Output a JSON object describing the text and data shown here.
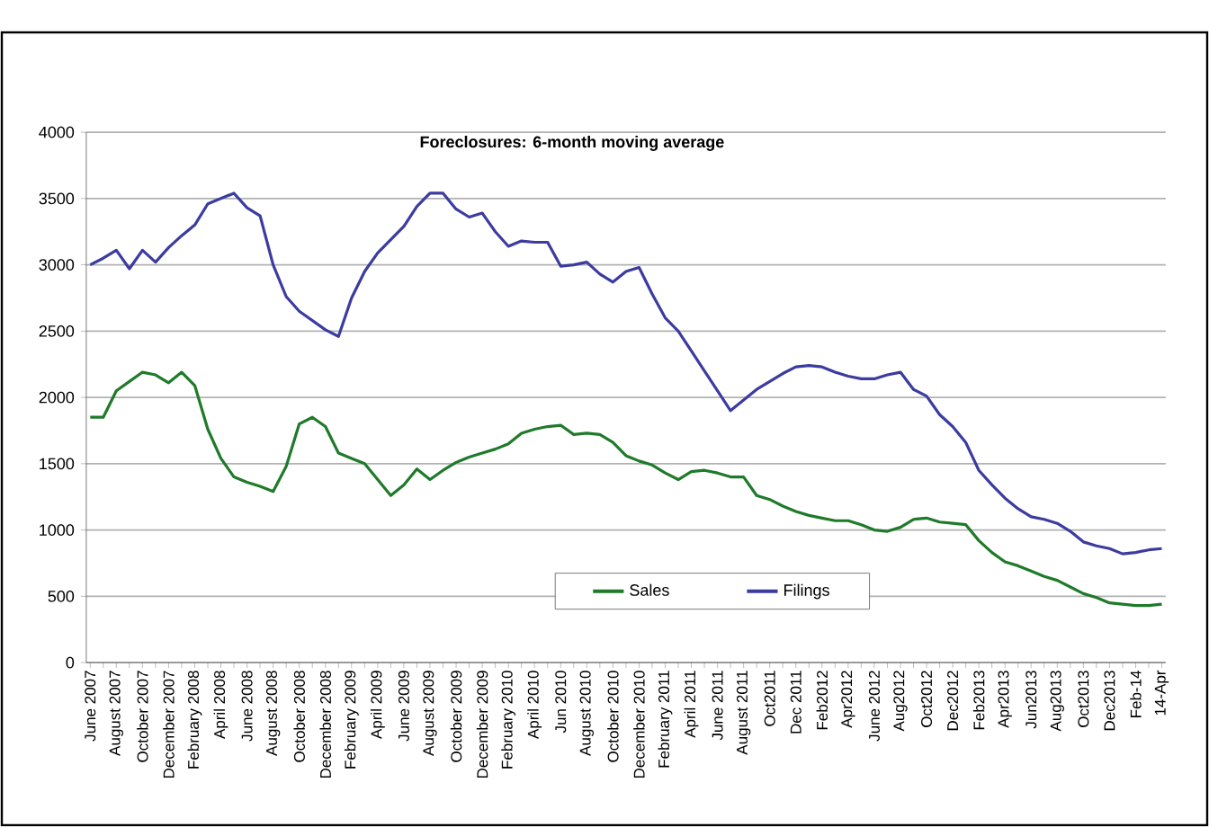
{
  "chart_data": {
    "type": "line",
    "title": "Foreclosures: 6-month moving average",
    "categories": [
      "June 2007",
      null,
      "August 2007",
      null,
      "October 2007",
      null,
      "December 2007",
      null,
      "February 2008",
      null,
      "April 2008",
      null,
      "June 2008",
      null,
      "August 2008",
      null,
      "October 2008",
      null,
      "December 2008",
      null,
      "February 2009",
      null,
      "April 2009",
      null,
      "June 2009",
      null,
      "August 2009",
      null,
      "October 2009",
      null,
      "December 2009",
      null,
      "February 2010",
      null,
      "April 2010",
      null,
      "Jun 2010",
      null,
      "August 2010",
      null,
      "October 2010",
      null,
      "December 2010",
      null,
      "February 2011",
      null,
      "April 2011",
      null,
      "June 2011",
      null,
      "August 2011",
      null,
      "Oct2011",
      null,
      "Dec 2011",
      null,
      "Feb2012",
      null,
      "Apr2012",
      null,
      "June 2012",
      null,
      "Aug2012",
      null,
      "Oct2012",
      null,
      "Dec2012",
      null,
      "Feb2013",
      null,
      "Apr2013",
      null,
      "Jun2013",
      null,
      "Aug2013",
      null,
      "Oct2013",
      null,
      "Dec2013",
      null,
      "Feb-14",
      null,
      "14-Apr"
    ],
    "series": [
      {
        "name": "Sales",
        "color": "#1f7a2a",
        "values": [
          1850,
          1850,
          2050,
          2120,
          2190,
          2170,
          2110,
          2190,
          2090,
          1760,
          1540,
          1400,
          1360,
          1330,
          1290,
          1480,
          1800,
          1850,
          1780,
          1580,
          1540,
          1500,
          1380,
          1260,
          1340,
          1460,
          1380,
          1450,
          1510,
          1550,
          1580,
          1610,
          1650,
          1730,
          1760,
          1780,
          1790,
          1720,
          1730,
          1720,
          1660,
          1560,
          1520,
          1490,
          1430,
          1380,
          1440,
          1450,
          1430,
          1400,
          1400,
          1260,
          1230,
          1180,
          1140,
          1110,
          1090,
          1070,
          1070,
          1040,
          1000,
          990,
          1020,
          1080,
          1090,
          1060,
          1050,
          1040,
          920,
          830,
          760,
          730,
          690,
          650,
          620,
          570,
          520,
          490,
          450,
          440,
          430,
          430,
          440
        ]
      },
      {
        "name": "Filings",
        "color": "#3c3ca0",
        "values": [
          3000,
          3050,
          3110,
          2970,
          3110,
          3020,
          3130,
          3220,
          3300,
          3460,
          3500,
          3540,
          3430,
          3370,
          3000,
          2760,
          2650,
          2580,
          2510,
          2460,
          2750,
          2950,
          3090,
          3190,
          3290,
          3440,
          3540,
          3540,
          3420,
          3360,
          3390,
          3250,
          3140,
          3180,
          3170,
          3170,
          2990,
          3000,
          3020,
          2930,
          2870,
          2950,
          2980,
          2780,
          2600,
          2500,
          2350,
          2200,
          2050,
          1900,
          1980,
          2060,
          2120,
          2180,
          2230,
          2240,
          2230,
          2190,
          2160,
          2140,
          2140,
          2170,
          2190,
          2060,
          2010,
          1870,
          1780,
          1660,
          1450,
          1340,
          1240,
          1160,
          1100,
          1080,
          1050,
          990,
          910,
          880,
          860,
          820,
          830,
          850,
          860
        ]
      }
    ],
    "ylim": [
      0,
      4000
    ],
    "yticks": [
      0,
      500,
      1000,
      1500,
      2000,
      2500,
      3000,
      3500,
      4000
    ],
    "grid": "y",
    "legend": "bottom",
    "line_style": "solid",
    "marker": "none"
  }
}
